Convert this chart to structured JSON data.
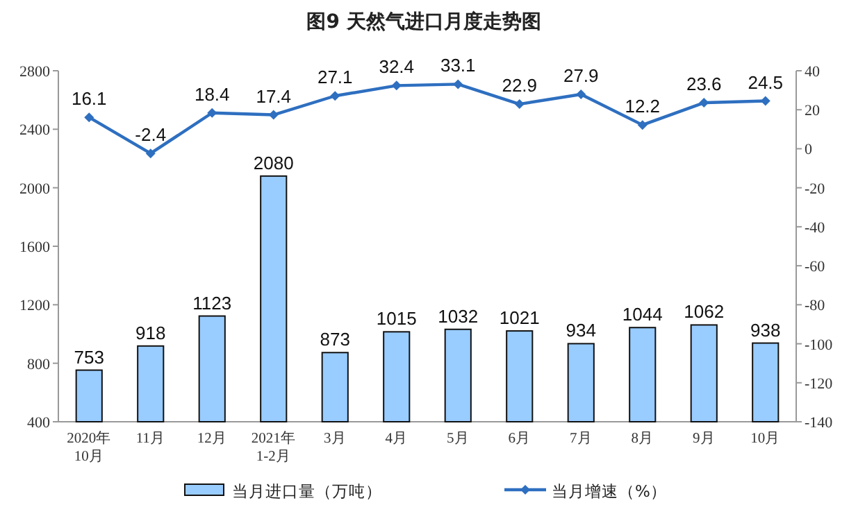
{
  "chart_data": {
    "type": "bar",
    "title": "图9  天然气进口月度走势图",
    "categories": [
      "2020年\n10月",
      "11月",
      "12月",
      "2021年\n1-2月",
      "3月",
      "4月",
      "5月",
      "6月",
      "7月",
      "8月",
      "9月",
      "10月"
    ],
    "series": [
      {
        "name": "当月进口量（万吨）",
        "color": "#99ccff",
        "values": [
          753,
          918,
          1123,
          2080,
          873,
          1015,
          1032,
          1021,
          934,
          1044,
          1062,
          938
        ]
      },
      {
        "name": "当月增速（%）",
        "type": "line",
        "axis": "y2",
        "color": "#2e6fc0",
        "marker": "diamond",
        "values": [
          16.1,
          -2.4,
          18.4,
          17.4,
          27.1,
          32.4,
          33.1,
          22.9,
          27.9,
          12.2,
          23.6,
          24.5
        ]
      }
    ],
    "ylim": [
      400,
      2800
    ],
    "yticks": [
      400,
      800,
      1200,
      1600,
      2000,
      2400,
      2800
    ],
    "y2lim": [
      -140,
      40
    ],
    "y2ticks": [
      -140,
      -120,
      -100,
      -80,
      -60,
      -40,
      -20,
      0,
      20,
      40
    ],
    "data_labels": true,
    "legend": "bottom"
  }
}
